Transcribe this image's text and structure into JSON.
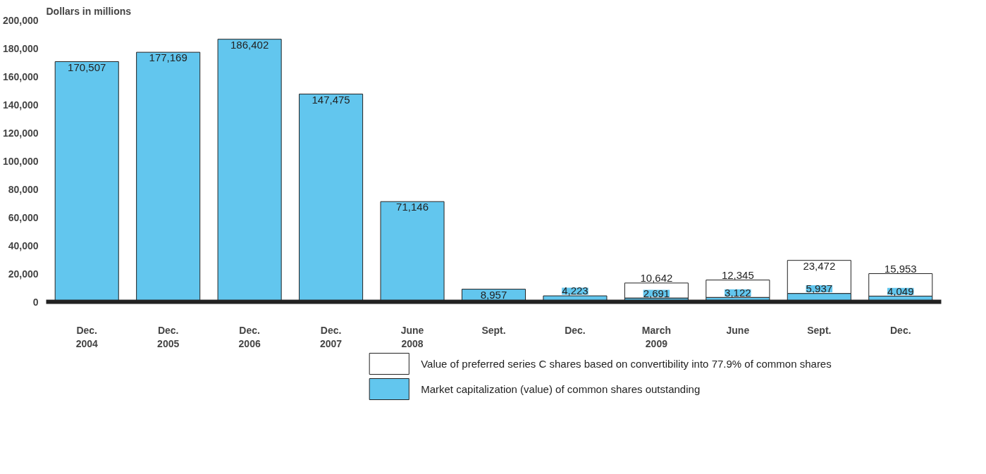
{
  "chart_data": {
    "type": "bar",
    "stacked": true,
    "ylabel": "Dollars in millions",
    "categories": [
      "Dec.\n2004",
      "Dec.\n2005",
      "Dec.\n2006",
      "Dec.\n2007",
      "June\n2008",
      "Sept.",
      "Dec.",
      "March\n2009",
      "June",
      "Sept.",
      "Dec."
    ],
    "series": [
      {
        "name": "Market capitalization (value) of common shares outstanding",
        "color": "#62c6ee",
        "values": [
          170507,
          177169,
          186402,
          147475,
          71146,
          8957,
          4223,
          2691,
          3122,
          5937,
          4049
        ],
        "value_labels": [
          "170,507",
          "177,169",
          "186,402",
          "147,475",
          "71,146",
          "8,957",
          "4,223",
          "2,691",
          "3,122",
          "5,937",
          "4,049"
        ]
      },
      {
        "name": "Value of preferred series C shares based on convertibility into 77.9% of common shares",
        "color": "#ffffff",
        "values": [
          null,
          null,
          null,
          null,
          null,
          null,
          null,
          10642,
          12345,
          23472,
          15953
        ],
        "value_labels": [
          null,
          null,
          null,
          null,
          null,
          null,
          null,
          "10,642",
          "12,345",
          "23,472",
          "15,953"
        ]
      }
    ],
    "ylim": [
      0,
      200000
    ],
    "yticks": [
      0,
      {
        "value": 20000,
        "label": "20,000"
      },
      {
        "value": 40000,
        "label": "40,000"
      },
      {
        "value": 60000,
        "label": "60,000"
      },
      {
        "value": 80000,
        "label": "80,000"
      },
      {
        "value": 100000,
        "label": "100,000"
      },
      {
        "value": 120000,
        "label": "120,000"
      },
      {
        "value": 140000,
        "label": "140,000"
      },
      {
        "value": 160000,
        "label": "160,000"
      },
      {
        "value": 180000,
        "label": "180,000"
      },
      {
        "value": 200000,
        "label": "200,000"
      }
    ],
    "grid": false,
    "legend": "bottom",
    "data_labels": true
  }
}
